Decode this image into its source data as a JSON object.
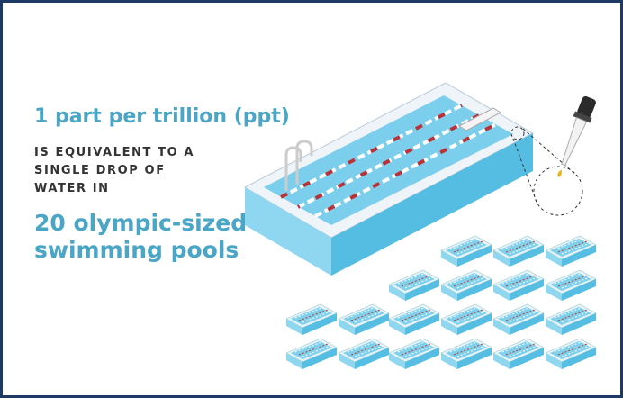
{
  "headline": "1 part per trillion (ppt)",
  "equivalence_lines": [
    "IS EQUIVALENT TO A",
    "SINGLE DROP OF",
    "WATER IN"
  ],
  "comparison_lines": [
    "20 olympic-sized",
    "swimming pools"
  ]
}
